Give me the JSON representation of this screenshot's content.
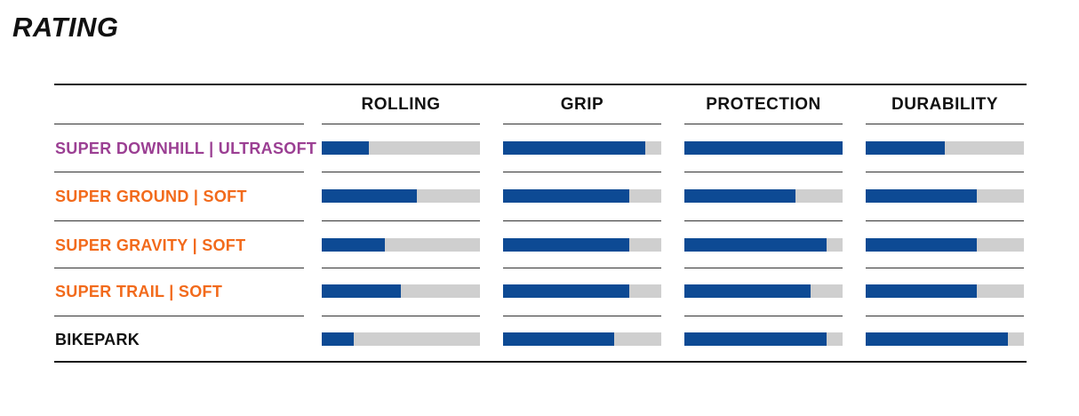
{
  "title": "RATING",
  "colors": {
    "bar_fill": "#0d4a94",
    "bar_track": "#cfcfcf",
    "label_purple": "#9b3f93",
    "label_orange": "#f26a1b",
    "label_black": "#111111"
  },
  "chart_data": {
    "type": "bar",
    "orientation": "horizontal",
    "categories": [
      "ROLLING",
      "GRIP",
      "PROTECTION",
      "DURABILITY"
    ],
    "xlim": [
      0,
      1
    ],
    "series": [
      {
        "name": "SUPER DOWNHILL | ULTRASOFT",
        "label_color": "#9b3f93",
        "values": [
          0.3,
          0.9,
          1.0,
          0.5
        ]
      },
      {
        "name": "SUPER GROUND | SOFT",
        "label_color": "#f26a1b",
        "values": [
          0.6,
          0.8,
          0.7,
          0.7
        ]
      },
      {
        "name": "SUPER GRAVITY | SOFT",
        "label_color": "#f26a1b",
        "values": [
          0.4,
          0.8,
          0.9,
          0.7
        ]
      },
      {
        "name": "SUPER TRAIL | SOFT",
        "label_color": "#f26a1b",
        "values": [
          0.5,
          0.8,
          0.8,
          0.7
        ]
      },
      {
        "name": "BIKEPARK",
        "label_color": "#111111",
        "values": [
          0.2,
          0.7,
          0.9,
          0.9
        ]
      }
    ]
  }
}
